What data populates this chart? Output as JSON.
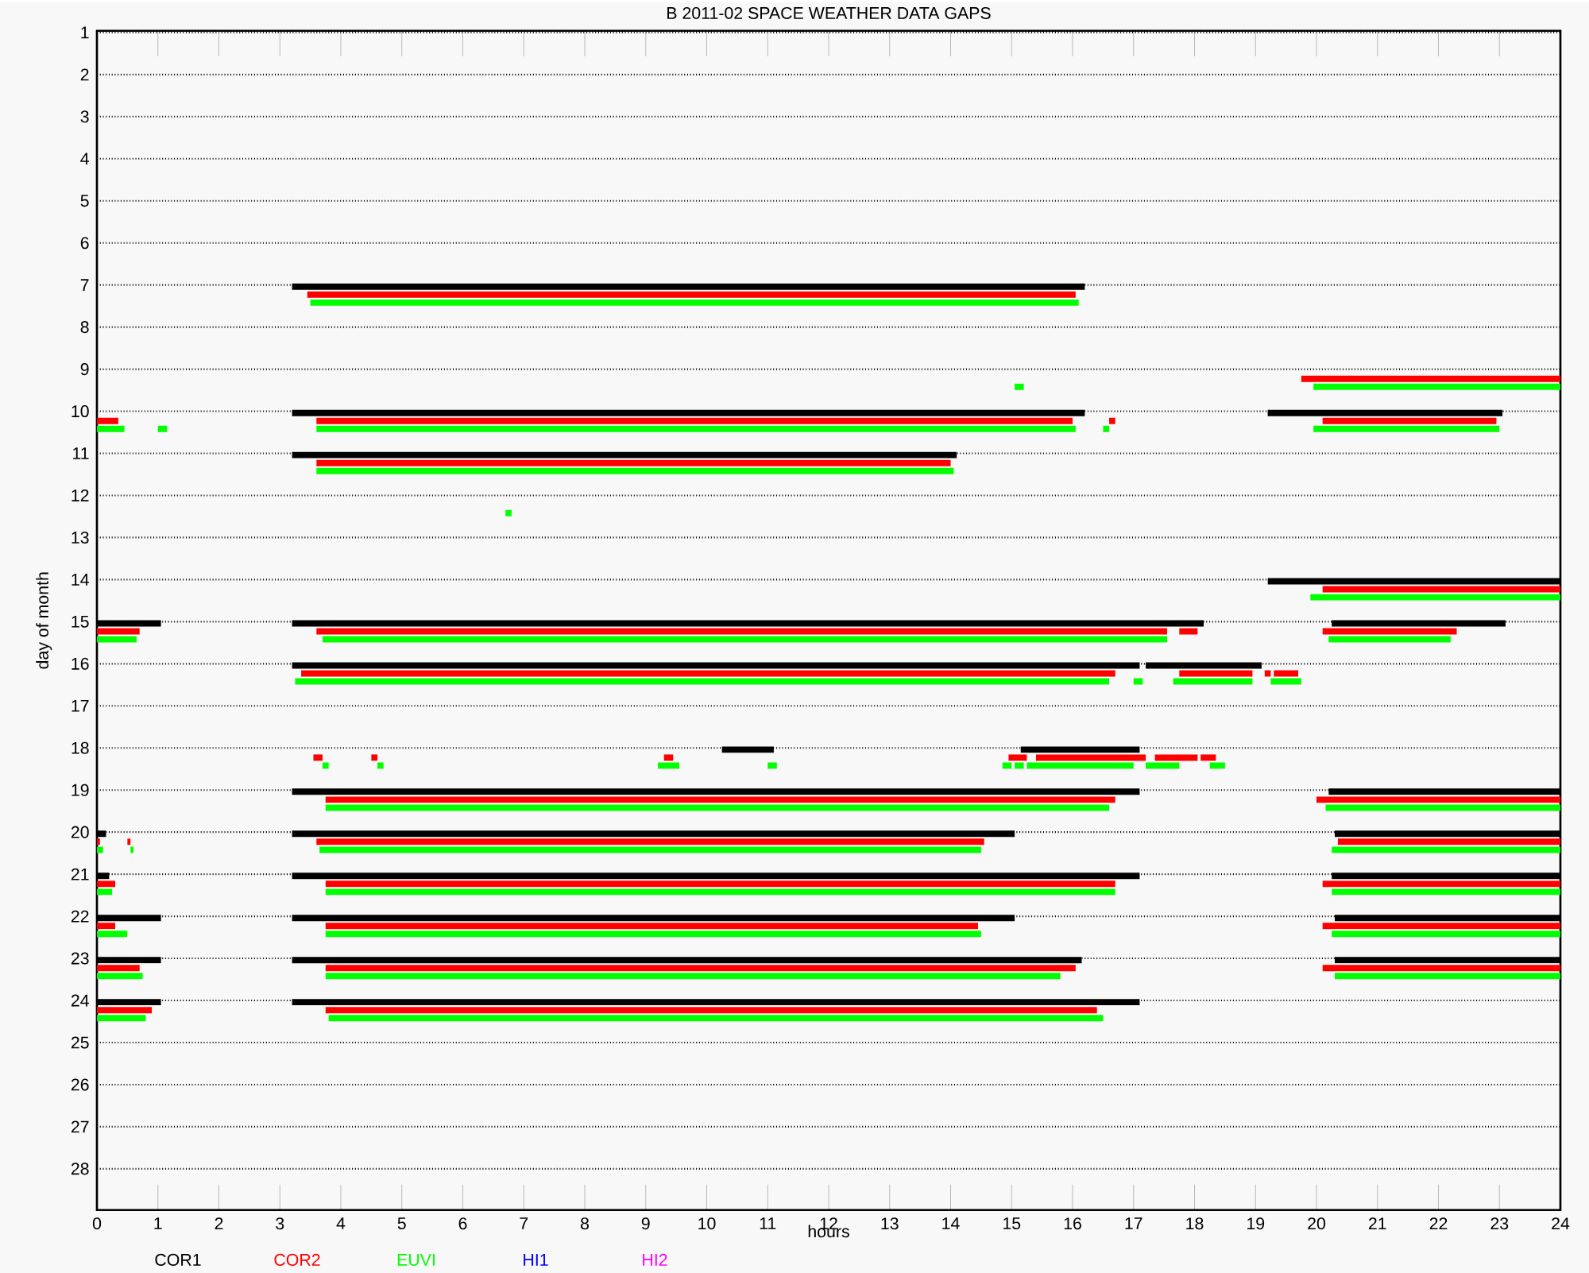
{
  "chart_data": {
    "type": "bar",
    "orientation": "horizontal",
    "title": "B  2011-02 SPACE WEATHER DATA GAPS",
    "xlabel": "hours",
    "ylabel": "day of month",
    "categories": [
      "1",
      "2",
      "3",
      "4",
      "5",
      "6",
      "7",
      "8",
      "9",
      "10",
      "11",
      "12",
      "13",
      "14",
      "15",
      "16",
      "17",
      "18",
      "19",
      "20",
      "21",
      "22",
      "23",
      "24",
      "25",
      "26",
      "27",
      "28"
    ],
    "xlim": [
      0,
      24
    ],
    "xticks": [
      0,
      1,
      2,
      3,
      4,
      5,
      6,
      7,
      8,
      9,
      10,
      11,
      12,
      13,
      14,
      15,
      16,
      17,
      18,
      19,
      20,
      21,
      22,
      23,
      24
    ],
    "grid": "y",
    "legend": "bottom",
    "series": [
      {
        "name": "COR1",
        "color": "#000000",
        "base": [
          null,
          null,
          null,
          null,
          null,
          null,
          3.2,
          null,
          null,
          3.2,
          3.2,
          null,
          null,
          19.2,
          0,
          3.2,
          null,
          10.25,
          3.2,
          0,
          0,
          0,
          0,
          0,
          null,
          null,
          null,
          null
        ],
        "values": [
          null,
          null,
          null,
          null,
          null,
          null,
          13.0,
          null,
          null,
          13.0,
          10.9,
          null,
          null,
          4.8,
          1.05,
          13.9,
          null,
          0.85,
          13.9,
          0.15,
          0.2,
          1.05,
          1.05,
          1.05,
          null,
          null,
          null,
          null
        ]
      },
      {
        "color": "#000000",
        "base": [
          null,
          null,
          null,
          null,
          null,
          null,
          null,
          null,
          null,
          19.2,
          null,
          null,
          null,
          null,
          3.2,
          17.2,
          null,
          15.15,
          20.2,
          3.2,
          3.2,
          3.2,
          3.2,
          3.2,
          null,
          null,
          null,
          null
        ],
        "values": [
          null,
          null,
          null,
          null,
          null,
          null,
          null,
          null,
          null,
          3.85,
          null,
          null,
          null,
          null,
          14.95,
          1.9,
          null,
          1.95,
          3.8,
          11.85,
          13.9,
          11.85,
          12.95,
          13.9,
          null,
          null,
          null,
          null
        ]
      },
      {
        "color": "#000000",
        "base": [
          null,
          null,
          null,
          null,
          null,
          null,
          null,
          null,
          null,
          null,
          null,
          null,
          null,
          null,
          20.25,
          null,
          null,
          null,
          null,
          20.3,
          20.25,
          20.3,
          20.3,
          null,
          null,
          null,
          null,
          null
        ],
        "values": [
          null,
          null,
          null,
          null,
          null,
          null,
          null,
          null,
          null,
          null,
          null,
          null,
          null,
          null,
          2.85,
          null,
          null,
          null,
          null,
          3.7,
          3.75,
          3.7,
          3.7,
          null,
          null,
          null,
          null,
          null
        ]
      },
      {
        "name": "COR2",
        "color": "#ff0000",
        "base": [
          null,
          null,
          null,
          null,
          null,
          null,
          3.45,
          null,
          19.75,
          0,
          3.6,
          null,
          null,
          20.1,
          0,
          3.35,
          null,
          3.55,
          3.75,
          0,
          0,
          0,
          0,
          0,
          null,
          null,
          null,
          null
        ],
        "values": [
          null,
          null,
          null,
          null,
          null,
          null,
          12.6,
          null,
          4.25,
          0.35,
          10.4,
          null,
          null,
          3.9,
          0.7,
          13.35,
          null,
          0.15,
          12.95,
          0.05,
          0.3,
          0.3,
          0.7,
          0.9,
          null,
          null,
          null,
          null
        ]
      },
      {
        "color": "#ff0000",
        "base": [
          null,
          null,
          null,
          null,
          null,
          null,
          null,
          null,
          null,
          3.6,
          null,
          null,
          null,
          null,
          3.6,
          17.75,
          null,
          4.5,
          20.0,
          0.5,
          3.75,
          3.75,
          3.75,
          3.75,
          null,
          null,
          null,
          null
        ],
        "values": [
          null,
          null,
          null,
          null,
          null,
          null,
          null,
          null,
          null,
          12.4,
          null,
          null,
          null,
          null,
          13.95,
          1.2,
          null,
          0.1,
          4.0,
          0.05,
          12.95,
          10.7,
          12.3,
          12.65,
          null,
          null,
          null,
          null
        ]
      },
      {
        "color": "#ff0000",
        "base": [
          null,
          null,
          null,
          null,
          null,
          null,
          null,
          null,
          null,
          16.6,
          null,
          null,
          null,
          null,
          17.75,
          19.15,
          null,
          9.3,
          null,
          3.6,
          20.1,
          20.1,
          20.1,
          null,
          null,
          null,
          null,
          null
        ],
        "values": [
          null,
          null,
          null,
          null,
          null,
          null,
          null,
          null,
          null,
          0.1,
          null,
          null,
          null,
          null,
          0.3,
          0.1,
          null,
          0.15,
          null,
          10.95,
          3.9,
          3.9,
          3.9,
          null,
          null,
          null,
          null,
          null
        ]
      },
      {
        "color": "#ff0000",
        "base": [
          null,
          null,
          null,
          null,
          null,
          null,
          null,
          null,
          null,
          20.1,
          null,
          null,
          null,
          null,
          20.1,
          19.3,
          null,
          14.95,
          null,
          20.35,
          null,
          null,
          null,
          null,
          null,
          null,
          null,
          null
        ],
        "values": [
          null,
          null,
          null,
          null,
          null,
          null,
          null,
          null,
          null,
          2.85,
          null,
          null,
          null,
          null,
          2.2,
          0.4,
          null,
          0.3,
          null,
          3.65,
          null,
          null,
          null,
          null,
          null,
          null,
          null,
          null
        ]
      },
      {
        "color": "#ff0000",
        "base": [
          null,
          null,
          null,
          null,
          null,
          null,
          null,
          null,
          null,
          null,
          null,
          null,
          null,
          null,
          null,
          null,
          null,
          15.4,
          null,
          null,
          null,
          null,
          null,
          null,
          null,
          null,
          null,
          null
        ],
        "values": [
          null,
          null,
          null,
          null,
          null,
          null,
          null,
          null,
          null,
          null,
          null,
          null,
          null,
          null,
          null,
          null,
          null,
          1.8,
          null,
          null,
          null,
          null,
          null,
          null,
          null,
          null,
          null,
          null
        ]
      },
      {
        "color": "#ff0000",
        "base": [
          null,
          null,
          null,
          null,
          null,
          null,
          null,
          null,
          null,
          null,
          null,
          null,
          null,
          null,
          null,
          null,
          null,
          17.35,
          null,
          null,
          null,
          null,
          null,
          null,
          null,
          null,
          null,
          null
        ],
        "values": [
          null,
          null,
          null,
          null,
          null,
          null,
          null,
          null,
          null,
          null,
          null,
          null,
          null,
          null,
          null,
          null,
          null,
          0.7,
          null,
          null,
          null,
          null,
          null,
          null,
          null,
          null,
          null,
          null
        ]
      },
      {
        "color": "#ff0000",
        "base": [
          null,
          null,
          null,
          null,
          null,
          null,
          null,
          null,
          null,
          null,
          null,
          null,
          null,
          null,
          null,
          null,
          null,
          18.1,
          null,
          null,
          null,
          null,
          null,
          null,
          null,
          null,
          null,
          null
        ],
        "values": [
          null,
          null,
          null,
          null,
          null,
          null,
          null,
          null,
          null,
          null,
          null,
          null,
          null,
          null,
          null,
          null,
          null,
          0.25,
          null,
          null,
          null,
          null,
          null,
          null,
          null,
          null,
          null,
          null
        ]
      },
      {
        "name": "EUVI",
        "color": "#00ff00",
        "base": [
          null,
          null,
          null,
          null,
          null,
          null,
          3.5,
          null,
          15.05,
          0,
          3.6,
          6.7,
          null,
          19.9,
          0,
          3.25,
          null,
          3.7,
          3.75,
          0,
          0,
          0,
          0,
          0,
          null,
          null,
          null,
          null
        ],
        "values": [
          null,
          null,
          null,
          null,
          null,
          null,
          12.6,
          null,
          0.15,
          0.45,
          10.45,
          0.1,
          null,
          4.1,
          0.65,
          13.35,
          null,
          0.1,
          12.85,
          0.1,
          0.25,
          0.5,
          0.75,
          0.8,
          null,
          null,
          null,
          null
        ]
      },
      {
        "color": "#00ff00",
        "base": [
          null,
          null,
          null,
          null,
          null,
          null,
          null,
          null,
          19.95,
          1.0,
          null,
          null,
          null,
          null,
          3.7,
          17.0,
          null,
          4.6,
          20.15,
          0.55,
          3.75,
          3.75,
          3.75,
          3.8,
          null,
          null,
          null,
          null
        ],
        "values": [
          null,
          null,
          null,
          null,
          null,
          null,
          null,
          null,
          4.05,
          0.15,
          null,
          null,
          null,
          null,
          13.85,
          0.15,
          null,
          0.1,
          3.85,
          0.05,
          12.95,
          10.75,
          12.05,
          12.7,
          null,
          null,
          null,
          null
        ]
      },
      {
        "color": "#00ff00",
        "base": [
          null,
          null,
          null,
          null,
          null,
          null,
          null,
          null,
          null,
          3.6,
          null,
          null,
          null,
          null,
          20.2,
          17.65,
          null,
          9.2,
          null,
          3.65,
          20.25,
          20.25,
          20.3,
          null,
          null,
          null,
          null,
          null
        ],
        "values": [
          null,
          null,
          null,
          null,
          null,
          null,
          null,
          null,
          null,
          12.45,
          null,
          null,
          null,
          null,
          2.0,
          1.3,
          null,
          0.35,
          null,
          10.85,
          3.75,
          3.75,
          3.7,
          null,
          null,
          null,
          null,
          null
        ]
      },
      {
        "color": "#00ff00",
        "base": [
          null,
          null,
          null,
          null,
          null,
          null,
          null,
          null,
          null,
          16.5,
          null,
          null,
          null,
          null,
          null,
          19.25,
          null,
          11.0,
          null,
          20.25,
          null,
          null,
          null,
          null,
          null,
          null,
          null,
          null
        ],
        "values": [
          null,
          null,
          null,
          null,
          null,
          null,
          null,
          null,
          null,
          0.1,
          null,
          null,
          null,
          null,
          null,
          0.5,
          null,
          0.15,
          null,
          3.75,
          null,
          null,
          null,
          null,
          null,
          null,
          null,
          null
        ]
      },
      {
        "color": "#00ff00",
        "base": [
          null,
          null,
          null,
          null,
          null,
          null,
          null,
          null,
          null,
          19.95,
          null,
          null,
          null,
          null,
          null,
          null,
          null,
          14.85,
          null,
          null,
          null,
          null,
          null,
          null,
          null,
          null,
          null,
          null
        ],
        "values": [
          null,
          null,
          null,
          null,
          null,
          null,
          null,
          null,
          null,
          3.05,
          null,
          null,
          null,
          null,
          null,
          null,
          null,
          0.15,
          null,
          null,
          null,
          null,
          null,
          null,
          null,
          null,
          null,
          null
        ]
      },
      {
        "color": "#00ff00",
        "base": [
          null,
          null,
          null,
          null,
          null,
          null,
          null,
          null,
          null,
          null,
          null,
          null,
          null,
          null,
          null,
          null,
          null,
          15.05,
          null,
          null,
          null,
          null,
          null,
          null,
          null,
          null,
          null,
          null
        ],
        "values": [
          null,
          null,
          null,
          null,
          null,
          null,
          null,
          null,
          null,
          null,
          null,
          null,
          null,
          null,
          null,
          null,
          null,
          0.15,
          null,
          null,
          null,
          null,
          null,
          null,
          null,
          null,
          null,
          null
        ]
      },
      {
        "color": "#00ff00",
        "base": [
          null,
          null,
          null,
          null,
          null,
          null,
          null,
          null,
          null,
          null,
          null,
          null,
          null,
          null,
          null,
          null,
          null,
          15.25,
          null,
          null,
          null,
          null,
          null,
          null,
          null,
          null,
          null,
          null
        ],
        "values": [
          null,
          null,
          null,
          null,
          null,
          null,
          null,
          null,
          null,
          null,
          null,
          null,
          null,
          null,
          null,
          null,
          null,
          1.75,
          null,
          null,
          null,
          null,
          null,
          null,
          null,
          null,
          null,
          null
        ]
      },
      {
        "color": "#00ff00",
        "base": [
          null,
          null,
          null,
          null,
          null,
          null,
          null,
          null,
          null,
          null,
          null,
          null,
          null,
          null,
          null,
          null,
          null,
          17.2,
          null,
          null,
          null,
          null,
          null,
          null,
          null,
          null,
          null,
          null
        ],
        "values": [
          null,
          null,
          null,
          null,
          null,
          null,
          null,
          null,
          null,
          null,
          null,
          null,
          null,
          null,
          null,
          null,
          null,
          0.55,
          null,
          null,
          null,
          null,
          null,
          null,
          null,
          null,
          null,
          null
        ]
      },
      {
        "color": "#00ff00",
        "base": [
          null,
          null,
          null,
          null,
          null,
          null,
          null,
          null,
          null,
          null,
          null,
          null,
          null,
          null,
          null,
          null,
          null,
          18.25,
          null,
          null,
          null,
          null,
          null,
          null,
          null,
          null,
          null,
          null
        ],
        "values": [
          null,
          null,
          null,
          null,
          null,
          null,
          null,
          null,
          null,
          null,
          null,
          null,
          null,
          null,
          null,
          null,
          null,
          0.25,
          null,
          null,
          null,
          null,
          null,
          null,
          null,
          null,
          null,
          null
        ]
      },
      {
        "name": "HI1",
        "color": "#0000ff",
        "base": [
          null,
          null,
          null,
          null,
          null,
          null,
          null,
          null,
          null,
          null,
          null,
          null,
          null,
          null,
          null,
          null,
          null,
          null,
          null,
          null,
          null,
          null,
          null,
          null,
          null,
          null,
          null,
          null
        ],
        "values": [
          null,
          null,
          null,
          null,
          null,
          null,
          null,
          null,
          null,
          null,
          null,
          null,
          null,
          null,
          null,
          null,
          null,
          null,
          null,
          null,
          null,
          null,
          null,
          null,
          null,
          null,
          null,
          null
        ]
      },
      {
        "name": "HI2",
        "color": "#ff00ff",
        "base": [
          null,
          null,
          null,
          null,
          null,
          null,
          null,
          null,
          null,
          null,
          null,
          null,
          null,
          null,
          null,
          null,
          null,
          null,
          null,
          null,
          null,
          null,
          null,
          null,
          null,
          null,
          null,
          null
        ],
        "values": [
          null,
          null,
          null,
          null,
          null,
          null,
          null,
          null,
          null,
          null,
          null,
          null,
          null,
          null,
          null,
          null,
          null,
          null,
          null,
          null,
          null,
          null,
          null,
          null,
          null,
          null,
          null,
          null
        ]
      }
    ]
  }
}
